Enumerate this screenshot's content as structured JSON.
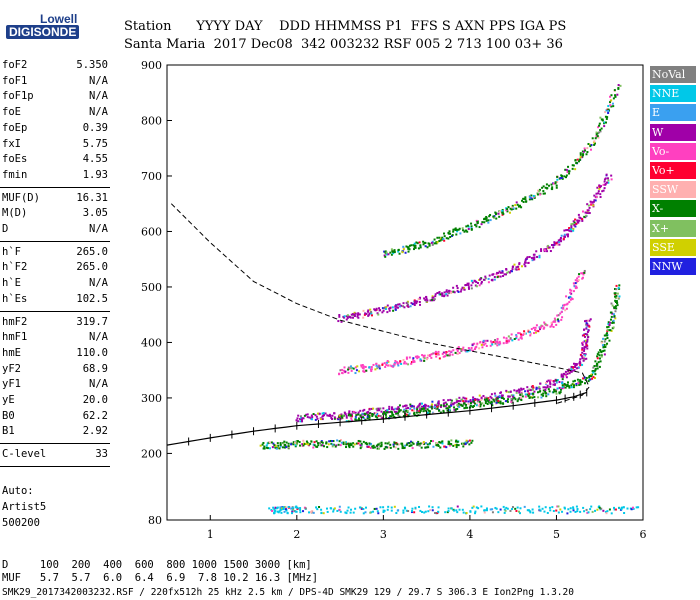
{
  "logo": {
    "line1": "Lowell",
    "line2": "DIGISONDE"
  },
  "header": {
    "line1": "Station      YYYY DAY    DDD HHMMSS P1  FFS S AXN PPS IGA PS",
    "line2": "Santa Maria  2017 Dec08  342 003232 RSF 005 2 713 100 03+ 36"
  },
  "params_group1": [
    {
      "k": "foF2",
      "v": "5.350"
    },
    {
      "k": "foF1",
      "v": "N/A"
    },
    {
      "k": "foF1p",
      "v": "N/A"
    },
    {
      "k": "foE",
      "v": "N/A"
    },
    {
      "k": "foEp",
      "v": "0.39"
    },
    {
      "k": "fxI",
      "v": "5.75"
    },
    {
      "k": "foEs",
      "v": "4.55"
    },
    {
      "k": "fmin",
      "v": "1.93"
    }
  ],
  "params_group2": [
    {
      "k": "MUF(D)",
      "v": "16.31"
    },
    {
      "k": "M(D)",
      "v": "3.05"
    },
    {
      "k": "D",
      "v": "N/A"
    }
  ],
  "params_group3": [
    {
      "k": "h`F",
      "v": "265.0"
    },
    {
      "k": "h`F2",
      "v": "265.0"
    },
    {
      "k": "h`E",
      "v": "N/A"
    },
    {
      "k": "h`Es",
      "v": "102.5"
    }
  ],
  "params_group4": [
    {
      "k": "hmF2",
      "v": "319.7"
    },
    {
      "k": "hmF1",
      "v": "N/A"
    },
    {
      "k": "hmE",
      "v": "110.0"
    },
    {
      "k": "yF2",
      "v": "68.9"
    },
    {
      "k": "yF1",
      "v": "N/A"
    },
    {
      "k": "yE",
      "v": "20.0"
    },
    {
      "k": "B0",
      "v": "62.2"
    },
    {
      "k": "B1",
      "v": "2.92"
    }
  ],
  "params_group5": [
    {
      "k": "C-level",
      "v": "33"
    }
  ],
  "auto": {
    "l1": "Auto:",
    "l2": "Artist5",
    "l3": "500200"
  },
  "legend": [
    {
      "label": "NoVal",
      "color": "#808080"
    },
    {
      "label": "NNE",
      "color": "#00c8e8"
    },
    {
      "label": "E",
      "color": "#3aa0f0"
    },
    {
      "label": "W",
      "color": "#a000a8"
    },
    {
      "label": "Vo-",
      "color": "#ff40c0"
    },
    {
      "label": "Vo+",
      "color": "#ff0030"
    },
    {
      "label": "SSW",
      "color": "#ffb0b0"
    },
    {
      "label": "X-",
      "color": "#008000"
    },
    {
      "label": "X+",
      "color": "#80c060"
    },
    {
      "label": "SSE",
      "color": "#d0d000"
    },
    {
      "label": "NNW",
      "color": "#2020e0"
    }
  ],
  "bottom": {
    "row1": "D     100  200  400  600  800 1000 1500 3000 [km]",
    "row2": "MUF   5.7  5.7  6.0  6.4  6.9  7.8 10.2 16.3 [MHz]",
    "row3": "SMK29_2017342003232.RSF / 220fx512h 25 kHz 2.5 km / DPS-4D SMK29 129 / 29.7 S 306.3 E Ion2Png 1.3.20"
  },
  "chart_data": {
    "type": "scatter",
    "xlim": [
      0.5,
      6
    ],
    "ylim": [
      80,
      900
    ],
    "x_ticks": [
      1,
      2,
      3,
      4,
      5,
      6
    ],
    "y_ticks": [
      80,
      200,
      300,
      400,
      500,
      600,
      700,
      800,
      900
    ],
    "profile": {
      "x": [
        0.5,
        1.0,
        1.5,
        2.0,
        2.5,
        3.0,
        3.5,
        4.0,
        4.5,
        5.0,
        5.2,
        5.35
      ],
      "y": [
        215,
        228,
        240,
        250,
        256,
        262,
        270,
        277,
        286,
        296,
        302,
        310
      ]
    },
    "dashed": {
      "x": [
        0.55,
        1.0,
        1.5,
        2.0,
        2.5,
        3.0,
        3.5,
        4.0,
        4.5,
        5.0,
        5.3,
        5.38,
        5.3,
        5.0
      ],
      "y": [
        650,
        580,
        510,
        470,
        440,
        420,
        400,
        385,
        370,
        355,
        345,
        320,
        305,
        290
      ]
    },
    "traces": [
      {
        "name": "F1",
        "color": "#a000a8",
        "x": [
          2.0,
          2.5,
          3.0,
          3.5,
          4.0,
          4.5,
          5.0,
          5.3,
          5.35
        ],
        "y": [
          265,
          270,
          278,
          288,
          298,
          310,
          330,
          370,
          440
        ]
      },
      {
        "name": "F1x",
        "color": "#008000",
        "x": [
          2.5,
          3.0,
          3.5,
          4.0,
          4.5,
          5.0,
          5.4,
          5.6,
          5.7
        ],
        "y": [
          265,
          270,
          278,
          290,
          300,
          315,
          340,
          420,
          500
        ]
      },
      {
        "name": "F2",
        "color": "#ff40c0",
        "x": [
          2.5,
          3.0,
          3.5,
          4.0,
          4.5,
          5.0,
          5.3
        ],
        "y": [
          350,
          360,
          375,
          392,
          410,
          440,
          530
        ]
      },
      {
        "name": "F3",
        "color": "#a000a8",
        "x": [
          2.5,
          3.0,
          3.5,
          4.0,
          4.5,
          5.0,
          5.3,
          5.6
        ],
        "y": [
          445,
          460,
          480,
          505,
          535,
          580,
          630,
          700
        ]
      },
      {
        "name": "F4",
        "color": "#008000",
        "x": [
          3.0,
          3.5,
          4.0,
          4.5,
          5.0,
          5.4,
          5.7
        ],
        "y": [
          560,
          580,
          610,
          645,
          690,
          760,
          860
        ]
      },
      {
        "name": "E",
        "color": "#00c8e8",
        "x": [
          1.7,
          2.0,
          3.0,
          4.0,
          5.0,
          5.9
        ],
        "y": [
          100,
          100,
          100,
          100,
          100,
          100
        ]
      },
      {
        "name": "Es",
        "color": "#008000",
        "x": [
          1.6,
          2.0,
          2.5,
          3.0,
          3.5,
          4.0
        ],
        "y": [
          215,
          218,
          220,
          215,
          218,
          220
        ]
      }
    ]
  }
}
